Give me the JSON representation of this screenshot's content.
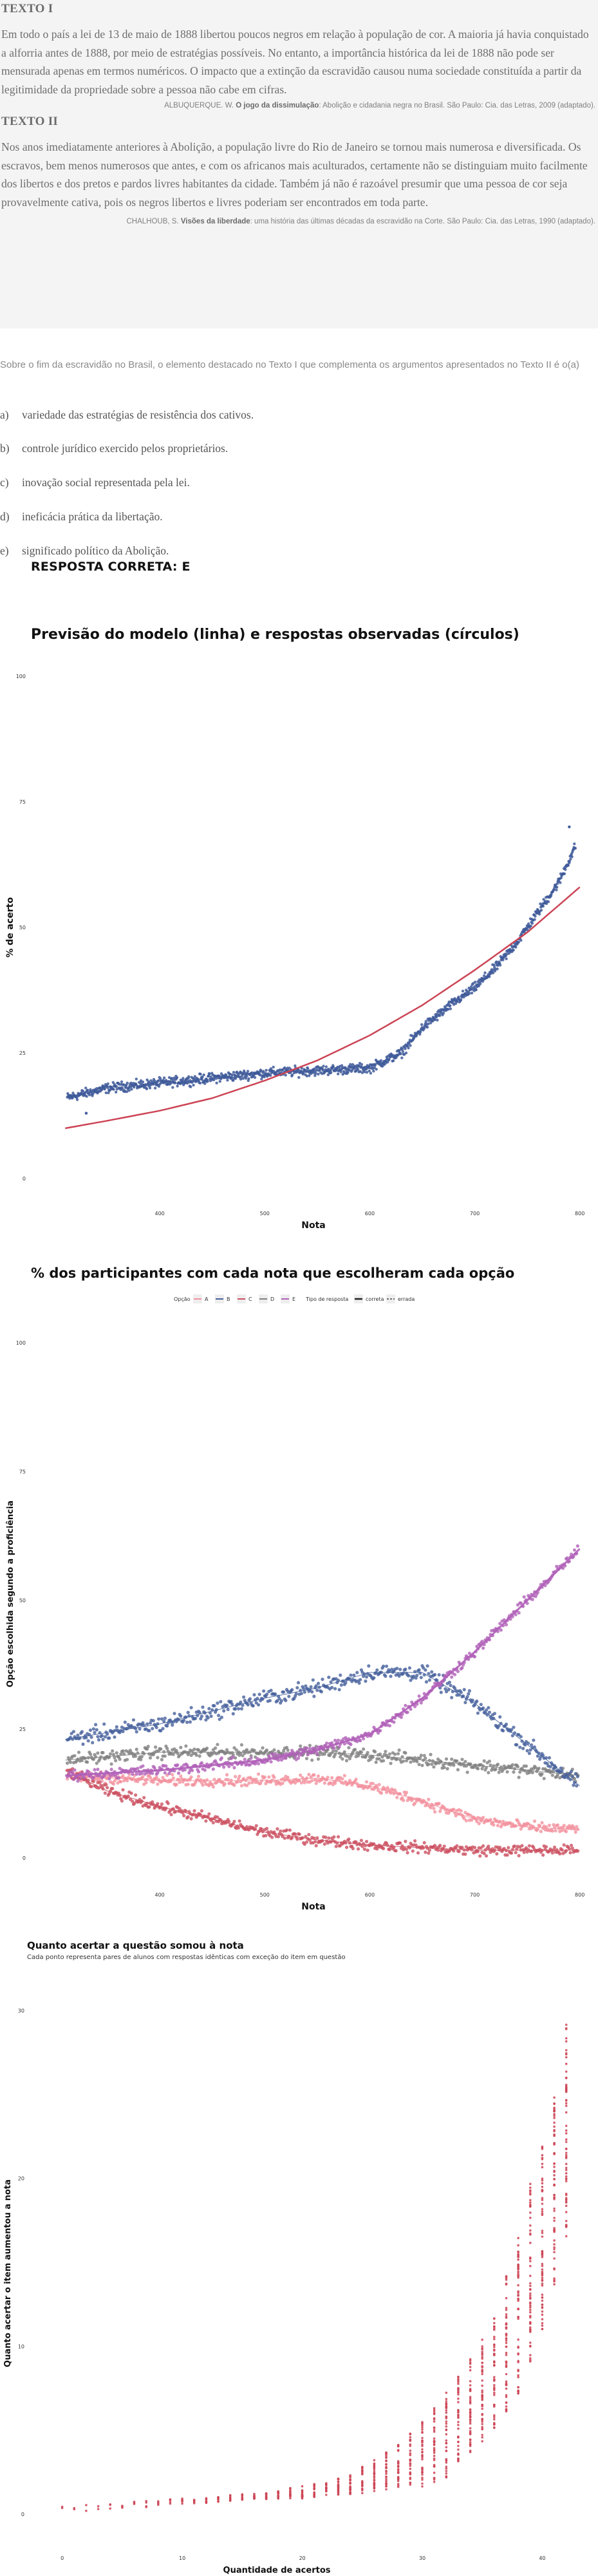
{
  "texto1": {
    "heading": "TEXTO I",
    "body": "Em todo o país a lei de 13 de maio de 1888 libertou poucos negros em relação à população de cor. A maioria já havia conquistado a alforria antes de 1888, por meio de estratégias possíveis. No entanto, a importância histórica da lei de 1888 não pode ser mensurada apenas em termos numéricos. O impacto que a extinção da escravidão causou numa sociedade constituída a partir da legitimidade da propriedade sobre a pessoa não cabe em cifras.",
    "source_author": "ALBUQUERQUE. W.",
    "source_title": "O jogo da dissimulação",
    "source_rest": ": Abolição e cidadania negra no Brasil. São Paulo: Cia. das Letras, 2009 (adaptado)."
  },
  "texto2": {
    "heading": "TEXTO II",
    "body": "Nos anos imediatamente anteriores à Abolição, a população livre do Rio de Janeiro se tornou mais numerosa e diversificada. Os escravos, bem menos numerosos que antes, e com os africanos mais aculturados, certamente não se distinguiam muito facilmente dos libertos e dos pretos e pardos livres habitantes da cidade. Também já não é razoável presumir que uma pessoa de cor seja provavelmente cativa, pois os negros libertos e livres poderiam ser encontrados em toda parte.",
    "source_author": "CHALHOUB, S.",
    "source_title": "Visões da liberdade",
    "source_rest": ": uma história das últimas décadas da escravidão na Corte. São Paulo: Cia. das Letras, 1990 (adaptado)."
  },
  "question": "Sobre o fim da escravidão no Brasil, o elemento destacado no Texto I que complementa os argumentos apresentados no Texto II é o(a)",
  "options": [
    {
      "letter": "a)",
      "text": "variedade das estratégias de resistência dos cativos."
    },
    {
      "letter": "b)",
      "text": "controle jurídico exercido pelos proprietários."
    },
    {
      "letter": "c)",
      "text": "inovação social representada pela lei."
    },
    {
      "letter": "d)",
      "text": "ineficácia prática da libertação."
    },
    {
      "letter": "e)",
      "text": "significado político da Abolição."
    }
  ],
  "correct_answer": "RESPOSTA CORRETA: E",
  "colors": {
    "points": "#3f5a9a",
    "model_line": "#cc4455",
    "opt_A": "#f2919e",
    "opt_B": "#46609c",
    "opt_C": "#cc5060",
    "opt_D": "#808080",
    "opt_E": "#b060b8"
  },
  "chart_data": [
    {
      "type": "scatter",
      "title": "Previsão do modelo (linha) e respostas observadas (círculos)",
      "xlabel": "Nota",
      "ylabel": "% de acerto",
      "xlim": [
        300,
        810
      ],
      "ylim": [
        0,
        100
      ],
      "x_ticks": [
        400,
        500,
        600,
        700,
        800
      ],
      "y_ticks": [
        0,
        25,
        50,
        75,
        100
      ],
      "observed_trend": {
        "x": [
          310,
          350,
          400,
          450,
          500,
          550,
          600,
          630,
          650,
          680,
          700,
          720,
          740,
          760,
          780,
          800
        ],
        "y": [
          16,
          18,
          19,
          20,
          21,
          21.5,
          22,
          25,
          30,
          35,
          38,
          42,
          47,
          53,
          59,
          68
        ]
      },
      "model_line": {
        "x": [
          310,
          350,
          400,
          450,
          500,
          550,
          600,
          650,
          700,
          750,
          800
        ],
        "y": [
          10,
          11.5,
          13.5,
          16,
          19.5,
          23.5,
          28.5,
          34.5,
          41.5,
          49,
          58
        ]
      },
      "outliers": [
        {
          "x": 790,
          "y": 70
        },
        {
          "x": 330,
          "y": 13
        }
      ],
      "grid": false
    },
    {
      "type": "scatter",
      "title": "% dos participantes com cada nota que escolheram cada opção",
      "xlabel": "Nota",
      "ylabel": "Opção escolhida segundo a proficiência",
      "xlim": [
        300,
        810
      ],
      "ylim": [
        0,
        100
      ],
      "x_ticks": [
        400,
        500,
        600,
        700,
        800
      ],
      "y_ticks": [
        0,
        25,
        50,
        75,
        100
      ],
      "legend": {
        "option_title": "Opção",
        "options": [
          "A",
          "B",
          "C",
          "D",
          "E"
        ],
        "type_title": "Tipo de resposta",
        "types": [
          "correta",
          "errada"
        ],
        "placement": "top"
      },
      "series": [
        {
          "name": "A",
          "x": [
            310,
            400,
            500,
            550,
            600,
            650,
            700,
            750,
            800
          ],
          "y": [
            16,
            15,
            15,
            15.5,
            14,
            11,
            7.5,
            6,
            5.5
          ]
        },
        {
          "name": "B",
          "x": [
            310,
            400,
            500,
            550,
            600,
            650,
            700,
            750,
            800
          ],
          "y": [
            23,
            26,
            31,
            33,
            36,
            36,
            30,
            22,
            14
          ]
        },
        {
          "name": "C",
          "x": [
            310,
            350,
            400,
            450,
            500,
            550,
            600,
            650,
            700,
            750,
            800
          ],
          "y": [
            17,
            13,
            10,
            7.5,
            5,
            3.5,
            2.5,
            2,
            1.5,
            1.5,
            1.5
          ]
        },
        {
          "name": "D",
          "x": [
            310,
            400,
            500,
            550,
            600,
            650,
            700,
            750,
            800
          ],
          "y": [
            19,
            20.5,
            20.5,
            20.5,
            20,
            19,
            18,
            17,
            16
          ]
        },
        {
          "name": "E",
          "x": [
            310,
            400,
            500,
            550,
            600,
            650,
            700,
            750,
            800
          ],
          "y": [
            16,
            17,
            19,
            21,
            24,
            31,
            40,
            50,
            60
          ]
        }
      ],
      "grid": false
    },
    {
      "type": "scatter",
      "title": "Quanto acertar a questão somou à nota",
      "subtitle": "Cada ponto representa pares de alunos com respostas idênticas com exceção do item em questão",
      "xlabel": "Quantidade de acertos",
      "ylabel": "Quanto acertar o item aumentou a nota",
      "xlim": [
        -1,
        44
      ],
      "ylim": [
        -1,
        32
      ],
      "x_ticks": [
        0,
        10,
        20,
        30,
        40
      ],
      "y_ticks": [
        0,
        10,
        20,
        30
      ],
      "x": [
        0,
        2,
        4,
        6,
        8,
        10,
        12,
        14,
        16,
        18,
        20,
        22,
        24,
        26,
        28,
        30,
        32,
        34,
        36,
        38,
        40,
        42
      ],
      "y_center": [
        0.2,
        0.3,
        0.4,
        0.5,
        0.6,
        0.7,
        0.8,
        0.9,
        1.0,
        1.1,
        1.2,
        1.4,
        1.6,
        2.0,
        2.5,
        3.0,
        4.0,
        5.5,
        7.5,
        10.5,
        15,
        21
      ],
      "y_max": [
        0.5,
        0.6,
        0.7,
        0.8,
        0.9,
        1.0,
        1.1,
        1.2,
        1.3,
        1.5,
        1.8,
        2.0,
        2.5,
        3.5,
        4.5,
        6,
        8,
        10,
        13,
        18,
        24,
        31
      ],
      "grid": false
    }
  ]
}
